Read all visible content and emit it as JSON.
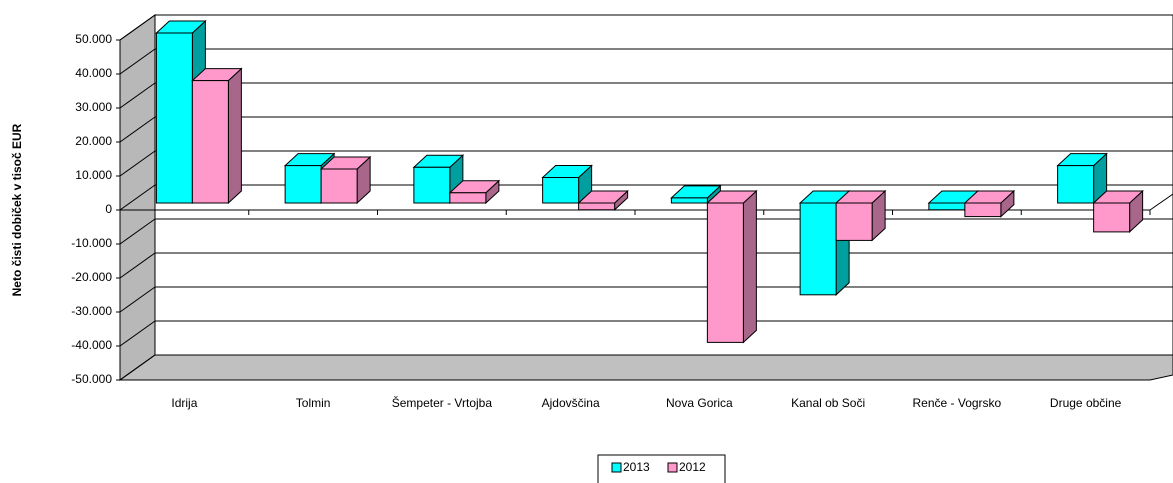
{
  "chart_data": {
    "type": "bar3d",
    "y_label": "Neto čisti dobiček v tisoč EUR",
    "categories": [
      "Idrija",
      "Tolmin",
      "Šempeter - Vrtojba",
      "Ajdovščina",
      "Nova Gorica",
      "Kanal ob Soči",
      "Renče - Vogrsko",
      "Druge občine"
    ],
    "series": [
      {
        "name": "2013",
        "color": "#00ffff",
        "side_color": "#009f9f",
        "values": [
          50000,
          11000,
          10500,
          7500,
          1500,
          -27000,
          -2000,
          11000
        ]
      },
      {
        "name": "2012",
        "color": "#ff99cc",
        "side_color": "#a8668a",
        "values": [
          36000,
          10000,
          3000,
          -2000,
          -41000,
          -11000,
          -4000,
          -8500
        ]
      }
    ],
    "ylim": [
      -50000,
      50000
    ],
    "yticks": [
      {
        "value": -50000,
        "label": "-50.000"
      },
      {
        "value": -40000,
        "label": "-40.000"
      },
      {
        "value": -30000,
        "label": "-30.000"
      },
      {
        "value": -20000,
        "label": "-20.000"
      },
      {
        "value": -10000,
        "label": "-10.000"
      },
      0,
      {
        "value": 10000,
        "label": "10.000"
      },
      {
        "value": 20000,
        "label": "20.000"
      },
      {
        "value": 30000,
        "label": "30.000"
      },
      {
        "value": 40000,
        "label": "40.000"
      },
      {
        "value": 50000,
        "label": "50.000"
      }
    ],
    "grid": true,
    "legend": "bottom"
  }
}
